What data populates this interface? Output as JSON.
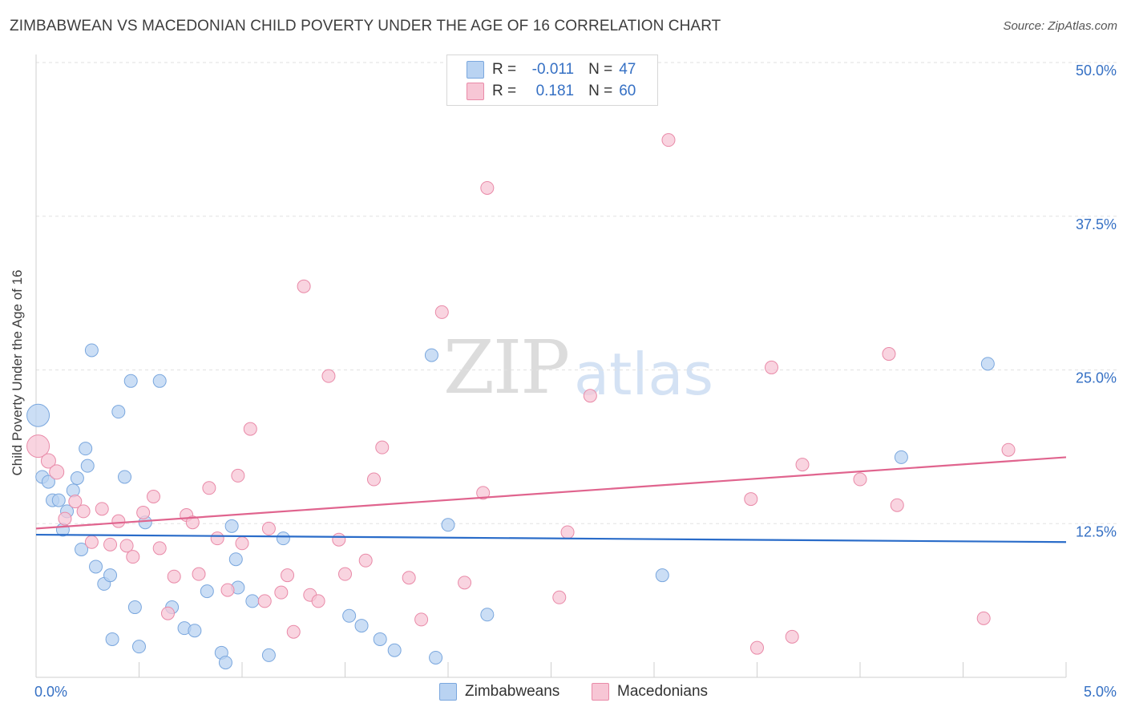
{
  "title": "ZIMBABWEAN VS MACEDONIAN CHILD POVERTY UNDER THE AGE OF 16 CORRELATION CHART",
  "source": "Source: ZipAtlas.com",
  "watermark": {
    "zip": "ZIP",
    "atlas": "atlas"
  },
  "legend_top": {
    "rows": [
      {
        "r_label": "R =",
        "r_value": "-0.011",
        "n_label": "N =",
        "n_value": "47"
      },
      {
        "r_label": "R =",
        "r_value": "0.181",
        "n_label": "N =",
        "n_value": "60"
      }
    ]
  },
  "colors": {
    "blue_fill": "#b9d3f2",
    "blue_stroke": "#7aa7de",
    "blue_line": "#2a6cc9",
    "pink_fill": "#f7c6d5",
    "pink_stroke": "#e98aa8",
    "pink_line": "#e0648e",
    "axis_text": "#3570c4"
  },
  "chart_data": {
    "type": "scatter",
    "title": "ZIMBABWEAN VS MACEDONIAN CHILD POVERTY UNDER THE AGE OF 16 CORRELATION CHART",
    "xlabel": "",
    "ylabel": "Child Poverty Under the Age of 16",
    "xlim": [
      0,
      5
    ],
    "ylim": [
      0,
      50
    ],
    "x_ticks": [
      "0.0%",
      "5.0%"
    ],
    "y_ticks": [
      "12.5%",
      "25.0%",
      "37.5%",
      "50.0%"
    ],
    "y_tick_values": [
      12.5,
      25,
      37.5,
      50
    ],
    "grid": "horizontal dashed",
    "legend_position": "bottom-center",
    "series": [
      {
        "name": "Zimbabweans",
        "r": -0.011,
        "n": 47,
        "trend": {
          "x0": 0,
          "y0": 11.6,
          "x1": 5,
          "y1": 11.0
        },
        "points": [
          [
            0.01,
            21.3,
            14
          ],
          [
            0.03,
            16.3,
            8
          ],
          [
            0.06,
            15.9,
            8
          ],
          [
            0.08,
            14.4,
            8
          ],
          [
            0.11,
            14.4,
            8
          ],
          [
            0.13,
            12.0,
            8
          ],
          [
            0.15,
            13.5,
            8
          ],
          [
            0.18,
            15.2,
            8
          ],
          [
            0.2,
            16.2,
            8
          ],
          [
            0.22,
            10.4,
            8
          ],
          [
            0.24,
            18.6,
            8
          ],
          [
            0.25,
            17.2,
            8
          ],
          [
            0.27,
            26.6,
            8
          ],
          [
            0.29,
            9.0,
            8
          ],
          [
            0.33,
            7.6,
            8
          ],
          [
            0.36,
            8.3,
            8
          ],
          [
            0.37,
            3.1,
            8
          ],
          [
            0.4,
            21.6,
            8
          ],
          [
            0.43,
            16.3,
            8
          ],
          [
            0.46,
            24.1,
            8
          ],
          [
            0.48,
            5.7,
            8
          ],
          [
            0.5,
            2.5,
            8
          ],
          [
            0.53,
            12.6,
            8
          ],
          [
            0.6,
            24.1,
            8
          ],
          [
            0.66,
            5.7,
            8
          ],
          [
            0.72,
            4.0,
            8
          ],
          [
            0.77,
            3.8,
            8
          ],
          [
            0.83,
            7.0,
            8
          ],
          [
            0.9,
            2.0,
            8
          ],
          [
            0.92,
            1.2,
            8
          ],
          [
            0.95,
            12.3,
            8
          ],
          [
            0.97,
            9.6,
            8
          ],
          [
            0.98,
            7.3,
            8
          ],
          [
            1.05,
            6.2,
            8
          ],
          [
            1.13,
            1.8,
            8
          ],
          [
            1.2,
            11.3,
            8
          ],
          [
            1.52,
            5.0,
            8
          ],
          [
            1.58,
            4.2,
            8
          ],
          [
            1.67,
            3.1,
            8
          ],
          [
            1.74,
            2.2,
            8
          ],
          [
            1.92,
            26.2,
            8
          ],
          [
            1.94,
            1.6,
            8
          ],
          [
            2.0,
            12.4,
            8
          ],
          [
            2.19,
            5.1,
            8
          ],
          [
            3.04,
            8.3,
            8
          ],
          [
            4.2,
            17.9,
            8
          ],
          [
            4.62,
            25.5,
            8
          ]
        ]
      },
      {
        "name": "Macedonians",
        "r": 0.181,
        "n": 60,
        "trend": {
          "x0": 0,
          "y0": 12.1,
          "x1": 5,
          "y1": 17.9
        },
        "points": [
          [
            0.01,
            18.8,
            14
          ],
          [
            0.06,
            17.6,
            9
          ],
          [
            0.1,
            16.7,
            9
          ],
          [
            0.14,
            12.9,
            8
          ],
          [
            0.19,
            14.3,
            8
          ],
          [
            0.23,
            13.5,
            8
          ],
          [
            0.27,
            11.0,
            8
          ],
          [
            0.32,
            13.7,
            8
          ],
          [
            0.36,
            10.8,
            8
          ],
          [
            0.4,
            12.7,
            8
          ],
          [
            0.44,
            10.7,
            8
          ],
          [
            0.47,
            9.8,
            8
          ],
          [
            0.52,
            13.4,
            8
          ],
          [
            0.57,
            14.7,
            8
          ],
          [
            0.6,
            10.5,
            8
          ],
          [
            0.64,
            5.2,
            8
          ],
          [
            0.67,
            8.2,
            8
          ],
          [
            0.73,
            13.2,
            8
          ],
          [
            0.76,
            12.6,
            8
          ],
          [
            0.79,
            8.4,
            8
          ],
          [
            0.84,
            15.4,
            8
          ],
          [
            0.88,
            11.3,
            8
          ],
          [
            0.93,
            7.1,
            8
          ],
          [
            0.98,
            16.4,
            8
          ],
          [
            1.0,
            10.9,
            8
          ],
          [
            1.04,
            20.2,
            8
          ],
          [
            1.11,
            6.2,
            8
          ],
          [
            1.13,
            12.1,
            8
          ],
          [
            1.19,
            6.9,
            8
          ],
          [
            1.22,
            8.3,
            8
          ],
          [
            1.25,
            3.7,
            8
          ],
          [
            1.3,
            31.8,
            8
          ],
          [
            1.33,
            6.7,
            8
          ],
          [
            1.37,
            6.2,
            8
          ],
          [
            1.42,
            24.5,
            8
          ],
          [
            1.47,
            11.2,
            8
          ],
          [
            1.5,
            8.4,
            8
          ],
          [
            1.6,
            9.5,
            8
          ],
          [
            1.64,
            16.1,
            8
          ],
          [
            1.68,
            18.7,
            8
          ],
          [
            1.81,
            8.1,
            8
          ],
          [
            1.87,
            4.7,
            8
          ],
          [
            1.97,
            29.7,
            8
          ],
          [
            2.08,
            7.7,
            8
          ],
          [
            2.17,
            15.0,
            8
          ],
          [
            2.19,
            39.8,
            8
          ],
          [
            2.54,
            6.5,
            8
          ],
          [
            2.58,
            11.8,
            8
          ],
          [
            2.69,
            22.9,
            8
          ],
          [
            3.07,
            43.7,
            8
          ],
          [
            3.47,
            14.5,
            8
          ],
          [
            3.5,
            2.4,
            8
          ],
          [
            3.57,
            25.2,
            8
          ],
          [
            3.67,
            3.3,
            8
          ],
          [
            3.72,
            17.3,
            8
          ],
          [
            4.0,
            16.1,
            8
          ],
          [
            4.14,
            26.3,
            8
          ],
          [
            4.18,
            14.0,
            8
          ],
          [
            4.6,
            4.8,
            8
          ],
          [
            4.72,
            18.5,
            8
          ]
        ]
      }
    ]
  }
}
